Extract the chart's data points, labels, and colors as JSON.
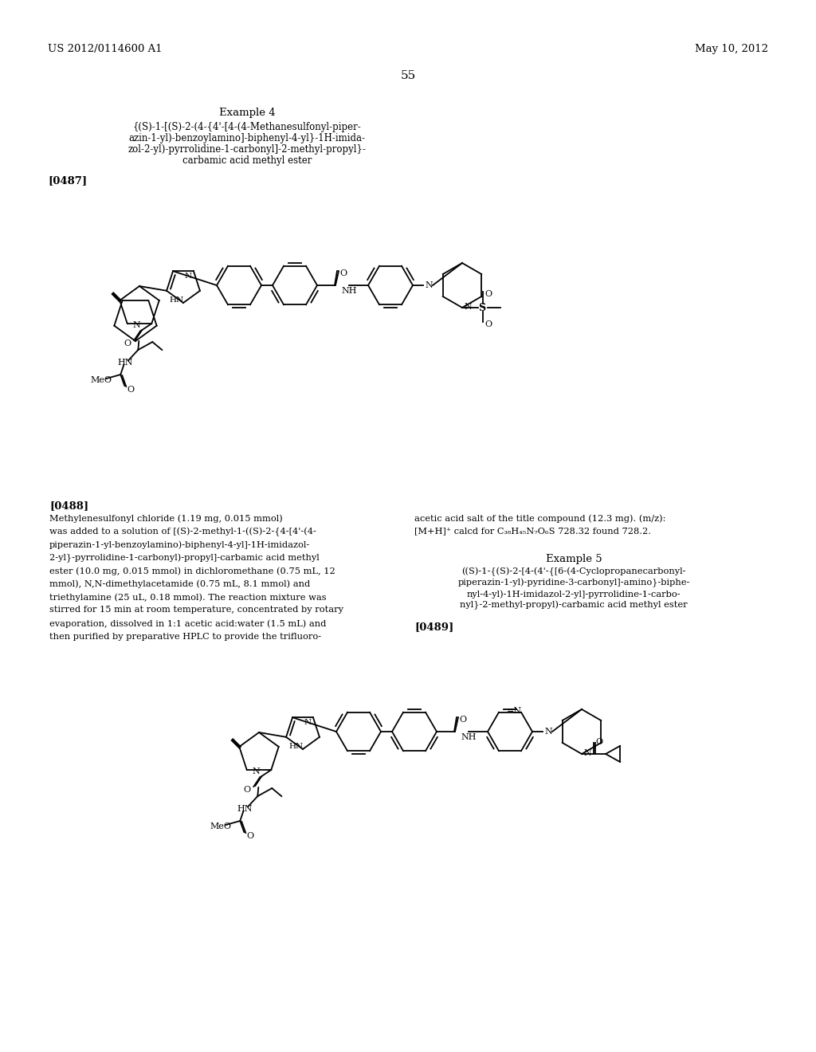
{
  "background_color": "#ffffff",
  "page_number": "55",
  "header_left": "US 2012/0114600 A1",
  "header_right": "May 10, 2012",
  "example4_title": "Example 4",
  "example4_name": "{(S)-1-[(S)-2-(4-{4'-[4-(4-Methanesulfonyl-piper-\nazin-1-yl)-benzoylamino]-biphenyl-4-yl}-1H-imida-\nzol-2-yl)-pyrrolidine-1-carbonyl]-2-methyl-propyl}-\ncarbamic acid methyl ester",
  "ref0487": "[0487]",
  "ref0488": "[0488]",
  "text0488_left": "Methylenesulfonyl chloride (1.19 mg, 0.015 mmol)\nwas added to a solution of [(S)-2-methyl-1-((S)-2-{4-[4'-(4-\npiperazin-1-yl-benzoylamino)-biphenyl-4-yl]-1H-imidazol-\n2-yl}-pyrrolidine-1-carbonyl)-propyl]-carbamic acid methyl\nester (10.0 mg, 0.015 mmol) in dichloromethane (0.75 mL, 12\nmmol), N,N-dimethylacetamide (0.75 mL, 8.1 mmol) and\ntriethylamine (25 uL, 0.18 mmol). The reaction mixture was\nstirred for 15 min at room temperature, concentrated by rotary\nevaporation, dissolved in 1:1 acetic acid:water (1.5 mL) and\nthen purified by preparative HPLC to provide the trifluoro-",
  "text0488_right": "acetic acid salt of the title compound (12.3 mg). (m/z):\n[M+H]⁺ calcd for C₃₈H₄₅N₇O₆S 728.32 found 728.2.",
  "example5_title": "Example 5",
  "example5_name": "((S)-1-{(S)-2-[4-(4'-{[6-(4-Cyclopropanecarbonyl-\npiperazin-1-yl)-pyridine-3-carbonyl]-amino}-biphe-\nnyl-4-yl)-1H-imidazol-2-yl]-pyrrolidine-1-carbo-\nnyl}-2-methyl-propyl)-carbamic acid methyl ester",
  "ref0489": "[0489]"
}
